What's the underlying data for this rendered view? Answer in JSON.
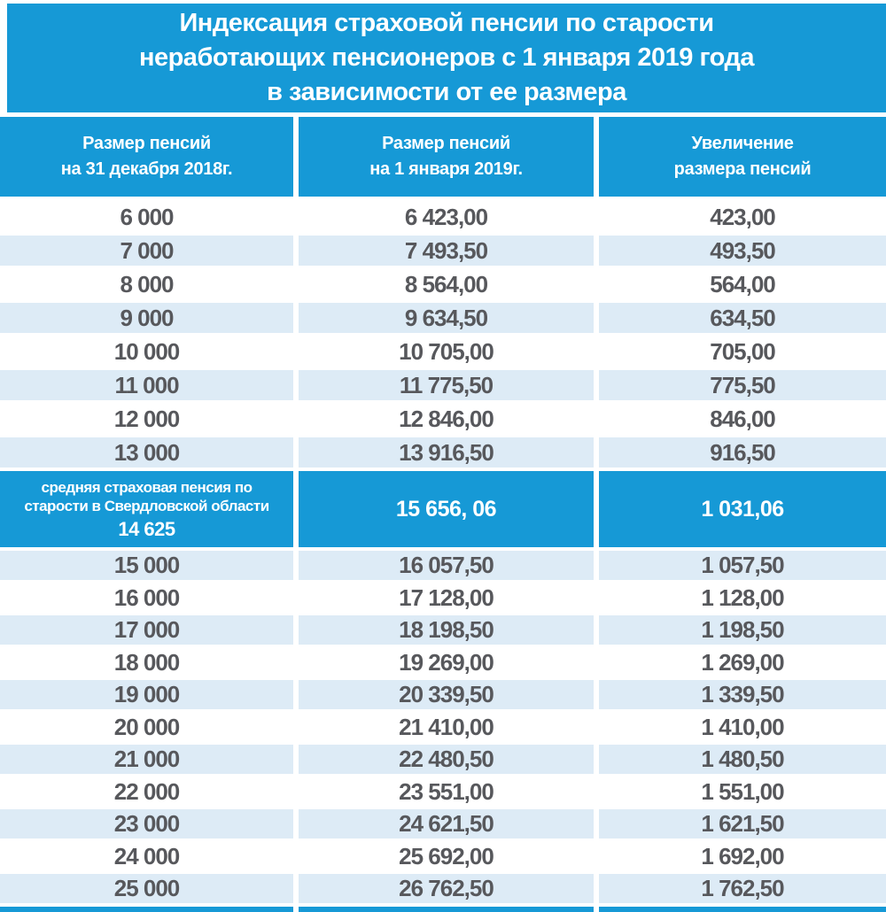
{
  "chart_data": {
    "type": "table",
    "title": "Индексация страховой пенсии по старости неработающих пенсионеров с 1 января 2019 года в зависимости от ее размера",
    "title_lines": [
      "Индексация страховой пенсии по старости",
      "неработающих пенсионеров с 1 января 2019 года",
      "в зависимости от ее размера"
    ],
    "columns": [
      [
        "Размер пенсий",
        "на 31 декабря  2018г."
      ],
      [
        "Размер пенсий",
        "на 1 января  2019г."
      ],
      [
        "Увеличение",
        "размера пенсий"
      ]
    ],
    "rows_before_special": [
      [
        "6 000",
        "6 423,00",
        "423,00"
      ],
      [
        "7 000",
        "7 493,50",
        "493,50"
      ],
      [
        "8 000",
        "8 564,00",
        "564,00"
      ],
      [
        "9 000",
        "9 634,50",
        "634,50"
      ],
      [
        "10 000",
        "10 705,00",
        "705,00"
      ],
      [
        "11 000",
        "11 775,50",
        "775,50"
      ],
      [
        "12 000",
        "12 846,00",
        "846,00"
      ],
      [
        "13 000",
        "13 916,50",
        "916,50"
      ]
    ],
    "special_row": {
      "label_line1": "средняя страховая пенсия по",
      "label_line2": "старости в Свердловской области",
      "pension_2018": "14 625",
      "pension_2019": "15 656, 06",
      "increase": "1 031,06"
    },
    "rows_after_special": [
      [
        "15 000",
        "16 057,50",
        "1 057,50"
      ],
      [
        "16 000",
        "17 128,00",
        "1 128,00"
      ],
      [
        "17 000",
        "18 198,50",
        "1 198,50"
      ],
      [
        "18 000",
        "19 269,00",
        "1 269,00"
      ],
      [
        "19 000",
        "20 339,50",
        "1 339,50"
      ],
      [
        "20 000",
        "21 410,00",
        "1 410,00"
      ],
      [
        "21 000",
        "22 480,50",
        "1 480,50"
      ],
      [
        "22 000",
        "23 551,00",
        "1 551,00"
      ],
      [
        "23 000",
        "24 621,50",
        "1 621,50"
      ],
      [
        "24 000",
        "25 692,00",
        "1 692,00"
      ],
      [
        "25 000",
        "26 762,50",
        "1 762,50"
      ]
    ]
  },
  "colors": {
    "primary_blue": "#1699d6",
    "row_stripe_blue": "#ddebf6",
    "number_text": "#57585c",
    "header_text": "#ffffff"
  }
}
